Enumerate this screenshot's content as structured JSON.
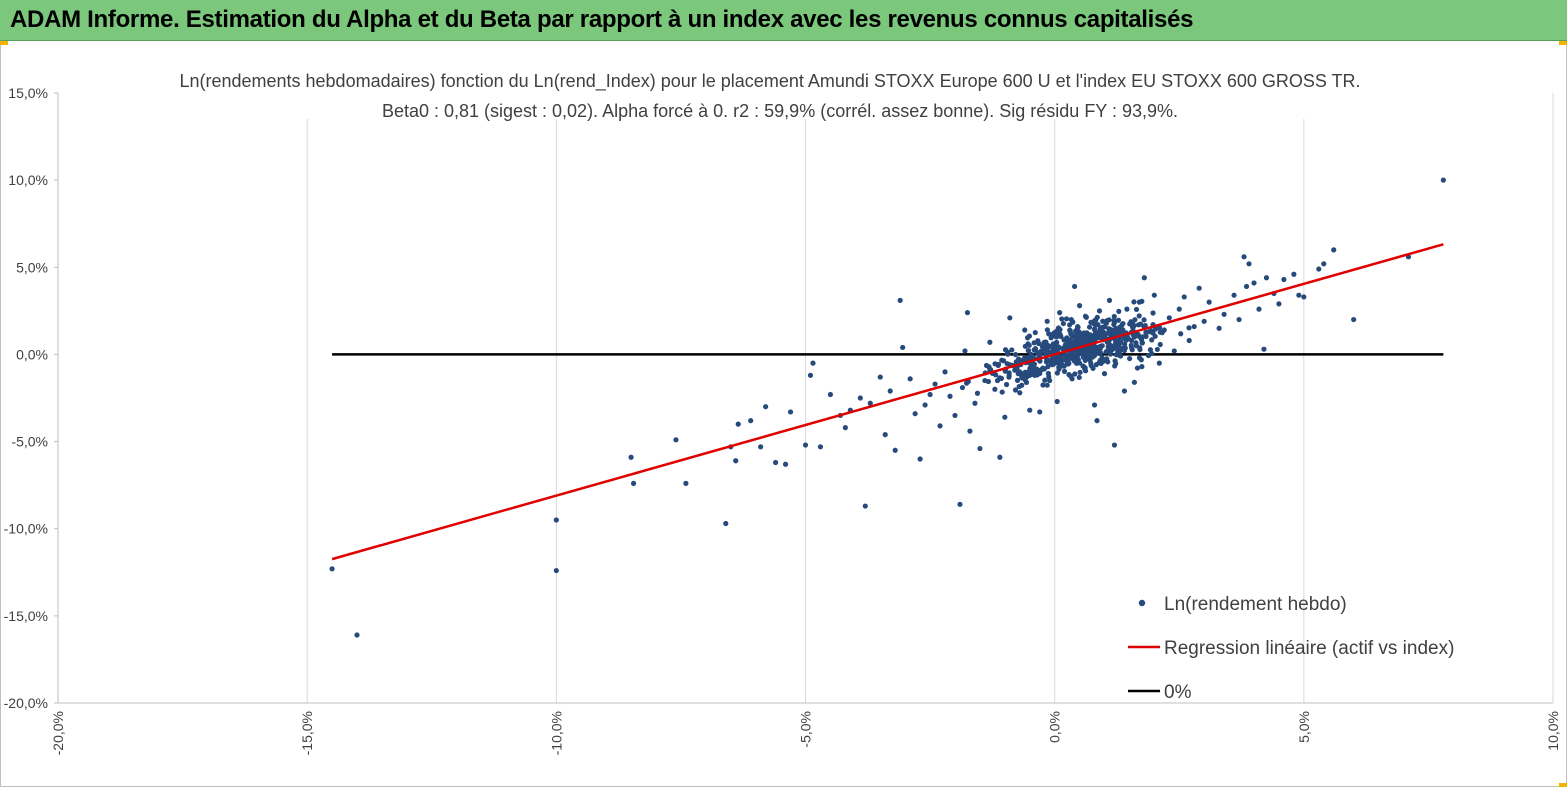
{
  "header": {
    "title": "ADAM Informe. Estimation du Alpha et du Beta par rapport à un index avec les revenus connus capitalisés"
  },
  "colors": {
    "header_bg": "#7bc77c",
    "points": "#264a7c",
    "regression": "#e00000",
    "zero_line": "#000000",
    "grid": "#d9d9d9"
  },
  "chart_data": {
    "type": "scatter",
    "title_line1": "Ln(rendements hebdomadaires) fonction du Ln(rend_Index) pour le placement Amundi STOXX Europe 600 U et l'index EU STOXX 600 GROSS TR.",
    "title_line2": "Beta0 : 0,81  (sigest : 0,02).  Alpha forcé à 0.  r2 : 59,9% (corrél. assez bonne).  Sig résidu FY : 93,9%.",
    "xlim": [
      -20,
      10
    ],
    "ylim": [
      -20,
      15
    ],
    "x_ticks": [
      -20,
      -15,
      -10,
      -5,
      0,
      5,
      10
    ],
    "y_ticks": [
      -20,
      -15,
      -10,
      -5,
      0,
      5,
      10,
      15
    ],
    "x_tick_labels": [
      "-20,0%",
      "-15,0%",
      "-10,0%",
      "-5,0%",
      "0,0%",
      "5,0%",
      "10,0%"
    ],
    "y_tick_labels": [
      "-20,0%",
      "-15,0%",
      "-10,0%",
      "-5,0%",
      "0,0%",
      "5,0%",
      "10,0%",
      "15,0%"
    ],
    "grid": "vertical",
    "legend_position": "bottom-right",
    "legend": [
      {
        "label": "Ln(rendement hebdo)",
        "marker": "dot"
      },
      {
        "label": "Regression linéaire (actif vs index)",
        "marker": "red-line"
      },
      {
        "label": "0%",
        "marker": "black-line"
      }
    ],
    "regression": {
      "slope": 0.81,
      "intercept": 0,
      "x_range": [
        -14.5,
        7.8
      ]
    },
    "zero_line": {
      "y": 0,
      "x_range": [
        -14.5,
        7.8
      ]
    },
    "series_name": "Ln(rendement hebdo)",
    "points": [
      [
        7.8,
        10.0
      ],
      [
        -14.5,
        -12.3
      ],
      [
        -14.0,
        -16.1
      ],
      [
        -10.0,
        -12.4
      ],
      [
        -10.0,
        -9.5
      ],
      [
        -8.5,
        -5.9
      ],
      [
        -8.45,
        -7.4
      ],
      [
        -7.6,
        -4.9
      ],
      [
        -7.4,
        -7.4
      ],
      [
        -6.6,
        -9.7
      ],
      [
        -6.5,
        -5.3
      ],
      [
        -6.4,
        -6.1
      ],
      [
        -6.35,
        -4.0
      ],
      [
        -6.1,
        -3.8
      ],
      [
        -5.9,
        -5.3
      ],
      [
        -5.8,
        -3.0
      ],
      [
        -5.6,
        -6.2
      ],
      [
        -5.4,
        -6.3
      ],
      [
        -5.3,
        -3.3
      ],
      [
        -5.0,
        -5.2
      ],
      [
        -4.9,
        -1.2
      ],
      [
        -4.85,
        -0.5
      ],
      [
        -4.7,
        -5.3
      ],
      [
        -4.5,
        -2.3
      ],
      [
        -4.3,
        -3.5
      ],
      [
        -4.2,
        -4.2
      ],
      [
        -4.1,
        -3.2
      ],
      [
        -3.9,
        -2.5
      ],
      [
        -3.8,
        -8.7
      ],
      [
        -3.7,
        -2.8
      ],
      [
        -3.5,
        -1.3
      ],
      [
        -3.4,
        -4.6
      ],
      [
        -3.3,
        -2.1
      ],
      [
        -3.2,
        -5.5
      ],
      [
        -3.1,
        3.1
      ],
      [
        -3.05,
        0.4
      ],
      [
        -2.9,
        -1.4
      ],
      [
        -2.8,
        -3.4
      ],
      [
        -2.7,
        -6.0
      ],
      [
        -2.6,
        -2.9
      ],
      [
        -2.5,
        -2.3
      ],
      [
        -2.4,
        -1.7
      ],
      [
        -2.3,
        -4.1
      ],
      [
        -2.2,
        -1.0
      ],
      [
        -2.1,
        -2.4
      ],
      [
        -2.0,
        -3.5
      ],
      [
        -1.9,
        -8.6
      ],
      [
        -1.85,
        -1.9
      ],
      [
        -1.8,
        0.2
      ],
      [
        -1.75,
        2.4
      ],
      [
        -1.7,
        -4.4
      ],
      [
        -1.6,
        -2.8
      ],
      [
        -1.5,
        -5.4
      ],
      [
        -1.4,
        -1.5
      ],
      [
        -1.3,
        0.7
      ],
      [
        -1.2,
        -2.0
      ],
      [
        -1.1,
        -5.9
      ],
      [
        -1.0,
        -3.6
      ],
      [
        -0.9,
        2.1
      ],
      [
        -0.8,
        -0.9
      ],
      [
        -0.7,
        -2.2
      ],
      [
        -0.6,
        1.4
      ],
      [
        -0.5,
        -3.2
      ],
      [
        -0.4,
        -1.2
      ],
      [
        -0.3,
        -3.3
      ],
      [
        -0.2,
        0.7
      ],
      [
        -0.15,
        1.9
      ],
      [
        -0.1,
        -1.5
      ],
      [
        0.05,
        -2.7
      ],
      [
        0.1,
        2.4
      ],
      [
        0.2,
        0.3
      ],
      [
        0.3,
        1.7
      ],
      [
        0.35,
        -1.4
      ],
      [
        0.4,
        3.9
      ],
      [
        0.5,
        2.8
      ],
      [
        0.6,
        -0.8
      ],
      [
        0.7,
        0.9
      ],
      [
        0.8,
        -2.9
      ],
      [
        0.85,
        -3.8
      ],
      [
        0.9,
        2.5
      ],
      [
        1.0,
        -1.1
      ],
      [
        1.1,
        3.1
      ],
      [
        1.2,
        -5.2
      ],
      [
        1.3,
        0.6
      ],
      [
        1.4,
        -2.1
      ],
      [
        1.45,
        2.6
      ],
      [
        1.6,
        -1.6
      ],
      [
        1.7,
        3.0
      ],
      [
        1.75,
        -0.7
      ],
      [
        1.8,
        4.4
      ],
      [
        1.9,
        1.3
      ],
      [
        2.0,
        3.4
      ],
      [
        2.1,
        -0.5
      ],
      [
        2.2,
        1.4
      ],
      [
        2.3,
        2.1
      ],
      [
        2.4,
        0.2
      ],
      [
        2.5,
        2.6
      ],
      [
        2.6,
        3.3
      ],
      [
        2.7,
        0.8
      ],
      [
        2.8,
        1.6
      ],
      [
        2.9,
        3.8
      ],
      [
        3.0,
        1.9
      ],
      [
        3.1,
        3.0
      ],
      [
        3.3,
        1.5
      ],
      [
        3.4,
        2.3
      ],
      [
        3.6,
        3.4
      ],
      [
        3.7,
        2.0
      ],
      [
        3.8,
        5.6
      ],
      [
        3.85,
        3.9
      ],
      [
        3.9,
        5.2
      ],
      [
        4.0,
        4.1
      ],
      [
        4.1,
        2.6
      ],
      [
        4.2,
        0.3
      ],
      [
        4.25,
        4.4
      ],
      [
        4.4,
        3.5
      ],
      [
        4.5,
        2.9
      ],
      [
        4.6,
        4.3
      ],
      [
        4.8,
        4.6
      ],
      [
        4.9,
        3.4
      ],
      [
        5.0,
        3.3
      ],
      [
        5.3,
        4.9
      ],
      [
        5.4,
        5.2
      ],
      [
        5.6,
        6.0
      ],
      [
        6.0,
        2.0
      ],
      [
        7.1,
        5.6
      ]
    ]
  }
}
